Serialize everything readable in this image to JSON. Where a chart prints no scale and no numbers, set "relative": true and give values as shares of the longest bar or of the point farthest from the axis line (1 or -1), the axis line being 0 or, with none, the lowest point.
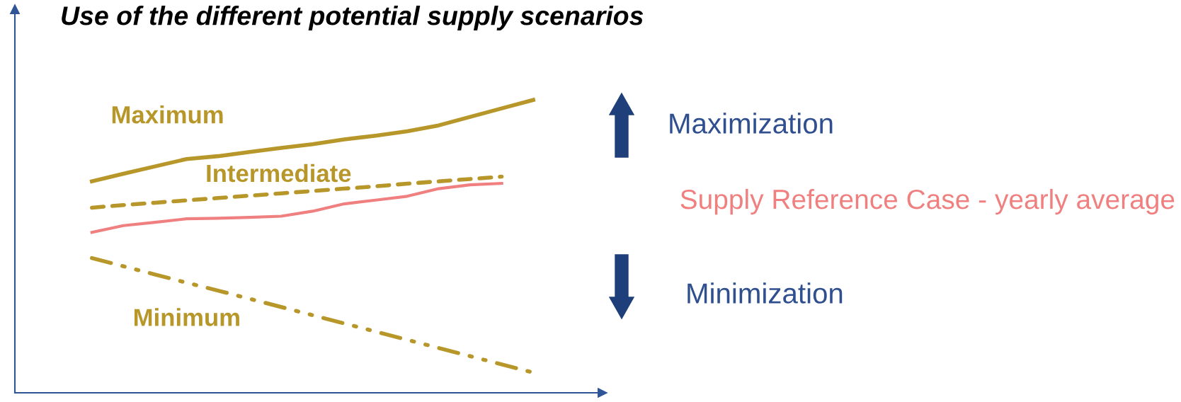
{
  "chart_data": {
    "type": "line",
    "title": "Use of the different potential supply scenarios",
    "relative": true,
    "categories": [
      null,
      null,
      null,
      null,
      null,
      null,
      null,
      null,
      null,
      null,
      null,
      null,
      null,
      null,
      null
    ],
    "series": [
      {
        "name": "Maximum",
        "color": "#b8972a",
        "line_style": "solid",
        "values": [
          0.722,
          0.748,
          0.773,
          0.798,
          0.808,
          0.822,
          0.836,
          0.849,
          0.865,
          0.878,
          0.893,
          0.913,
          0.942,
          0.971,
          1
        ]
      },
      {
        "name": "Intermediate",
        "color": "#b8972a",
        "line_style": "dashed",
        "values": [
          0.632,
          0.641,
          0.649,
          0.657,
          0.665,
          0.673,
          0.681,
          0.689,
          0.697,
          0.705,
          0.714,
          0.722,
          0.73,
          0.738,
          null
        ]
      },
      {
        "name": "Supply Reference Case - yearly average",
        "color": "#f08080",
        "line_style": "solid",
        "values": [
          0.548,
          0.571,
          0.582,
          0.594,
          0.596,
          0.599,
          0.603,
          0.62,
          0.645,
          0.658,
          0.671,
          0.697,
          0.71,
          0.715,
          null
        ]
      },
      {
        "name": "Minimum",
        "color": "#b8972a",
        "line_style": "dashdot",
        "values": [
          0.46,
          0.432,
          0.404,
          0.376,
          0.349,
          0.321,
          0.293,
          0.265,
          0.237,
          0.209,
          0.181,
          0.153,
          0.125,
          0.097,
          0.069
        ]
      }
    ],
    "annotations": [
      "Maximization",
      "Minimization"
    ],
    "legend": false
  }
}
